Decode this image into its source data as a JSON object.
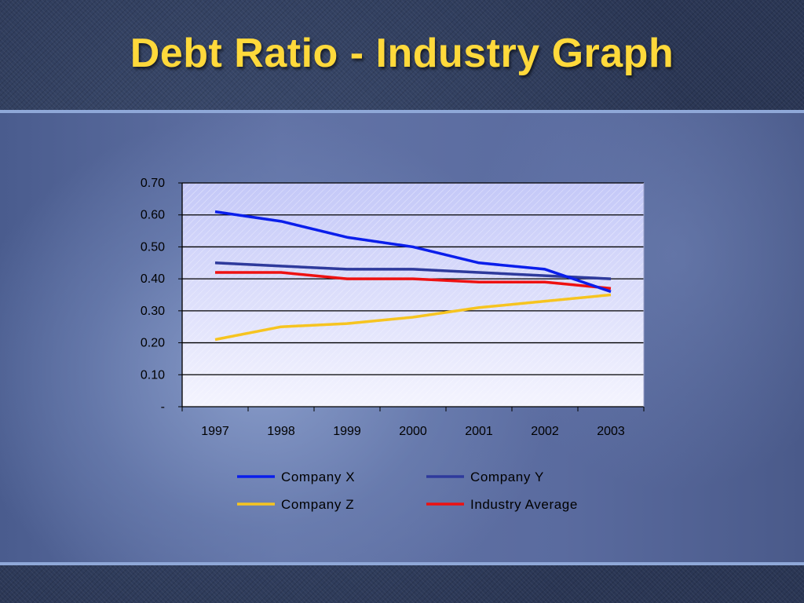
{
  "slide": {
    "title": "Debt Ratio - Industry Graph"
  },
  "colors": {
    "title": "#ffd93b",
    "company_x": "#0a1eeb",
    "company_y": "#2e3a9c",
    "company_z": "#f6c420",
    "industry_average": "#ee1111"
  },
  "chart_data": {
    "type": "line",
    "categories": [
      "1997",
      "1998",
      "1999",
      "2000",
      "2001",
      "2002",
      "2003"
    ],
    "series": [
      {
        "name": "Company X",
        "color": "#0a1eeb",
        "values": [
          0.61,
          0.58,
          0.53,
          0.5,
          0.45,
          0.43,
          0.36
        ]
      },
      {
        "name": "Company Y",
        "color": "#2e3a9c",
        "values": [
          0.45,
          0.44,
          0.43,
          0.43,
          0.42,
          0.41,
          0.4
        ]
      },
      {
        "name": "Company Z",
        "color": "#f6c420",
        "values": [
          0.21,
          0.25,
          0.26,
          0.28,
          0.31,
          0.33,
          0.35
        ]
      },
      {
        "name": "Industry Average",
        "color": "#ee1111",
        "values": [
          0.42,
          0.42,
          0.4,
          0.4,
          0.39,
          0.39,
          0.37
        ]
      }
    ],
    "yticks": [
      "-",
      "0.10",
      "0.20",
      "0.30",
      "0.40",
      "0.50",
      "0.60",
      "0.70"
    ],
    "ylim": [
      0,
      0.7
    ],
    "grid": true,
    "legend_position": "bottom"
  }
}
